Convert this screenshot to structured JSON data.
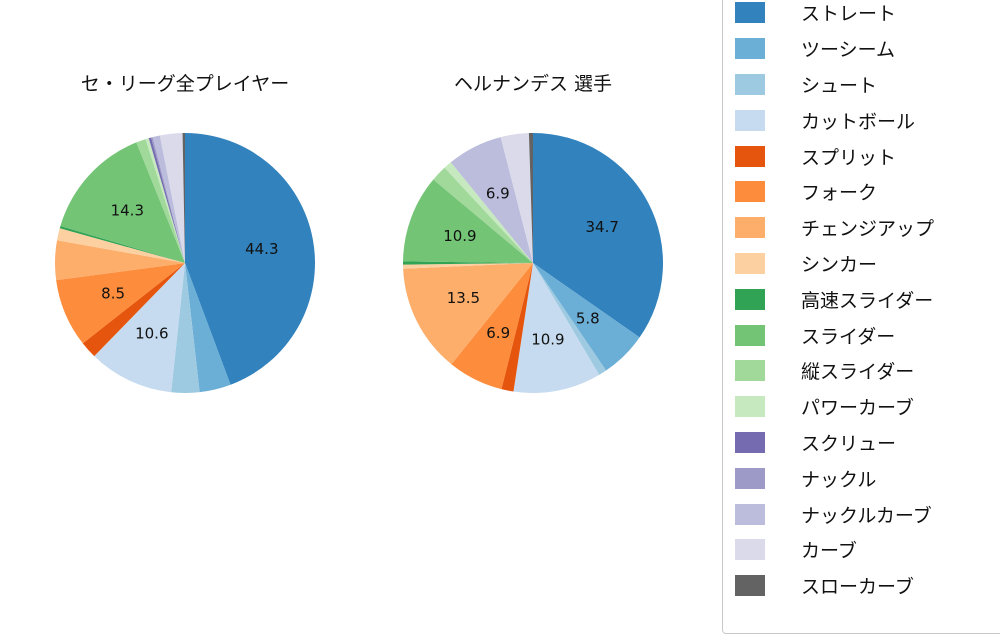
{
  "legend": {
    "items": [
      {
        "label": "ストレート",
        "color": "#3182bd"
      },
      {
        "label": "ツーシーム",
        "color": "#6baed6"
      },
      {
        "label": "シュート",
        "color": "#9ecae1"
      },
      {
        "label": "カットボール",
        "color": "#c6dbef"
      },
      {
        "label": "スプリット",
        "color": "#e6550d"
      },
      {
        "label": "フォーク",
        "color": "#fd8d3c"
      },
      {
        "label": "チェンジアップ",
        "color": "#fdae6b"
      },
      {
        "label": "シンカー",
        "color": "#fdd0a2"
      },
      {
        "label": "高速スライダー",
        "color": "#31a354"
      },
      {
        "label": "スライダー",
        "color": "#74c476"
      },
      {
        "label": "縦スライダー",
        "color": "#a1d99b"
      },
      {
        "label": "パワーカーブ",
        "color": "#c7e9c0"
      },
      {
        "label": "スクリュー",
        "color": "#756bb1"
      },
      {
        "label": "ナックル",
        "color": "#9e9ac8"
      },
      {
        "label": "ナックルカーブ",
        "color": "#bcbddc"
      },
      {
        "label": "カーブ",
        "color": "#dadaeb"
      },
      {
        "label": "スローカーブ",
        "color": "#636363"
      }
    ]
  },
  "chart_data": [
    {
      "type": "pie",
      "title": "セ・リーグ全プレイヤー",
      "start_angle_deg": 90,
      "direction": "clockwise",
      "label_min_pct": 5,
      "label_distance": 0.6,
      "categories": [
        "ストレート",
        "ツーシーム",
        "シュート",
        "カットボール",
        "スプリット",
        "フォーク",
        "チェンジアップ",
        "シンカー",
        "高速スライダー",
        "スライダー",
        "縦スライダー",
        "パワーカーブ",
        "スクリュー",
        "ナックル",
        "ナックルカーブ",
        "カーブ",
        "スローカーブ"
      ],
      "values": [
        44.3,
        3.9,
        3.5,
        10.6,
        2.1,
        8.5,
        4.9,
        1.5,
        0.3,
        14.3,
        1.2,
        0.4,
        0.3,
        0.2,
        0.9,
        2.8,
        0.3
      ],
      "shown_labels": [
        "44.3",
        "10.6",
        "8.5",
        "14.3"
      ]
    },
    {
      "type": "pie",
      "title": "ヘルナンデス 選手",
      "start_angle_deg": 90,
      "direction": "clockwise",
      "label_min_pct": 5,
      "label_distance": 0.6,
      "categories": [
        "ストレート",
        "ツーシーム",
        "シュート",
        "カットボール",
        "スプリット",
        "フォーク",
        "チェンジアップ",
        "シンカー",
        "高速スライダー",
        "スライダー",
        "縦スライダー",
        "パワーカーブ",
        "スクリュー",
        "ナックル",
        "ナックルカーブ",
        "カーブ",
        "スローカーブ"
      ],
      "values": [
        34.7,
        5.8,
        1.0,
        10.9,
        1.5,
        6.9,
        13.5,
        0.5,
        0.4,
        10.9,
        2.0,
        1.0,
        0.0,
        0.0,
        6.9,
        3.5,
        0.5
      ],
      "shown_labels": [
        "34.7",
        "5.8",
        "10.9",
        "6.9",
        "13.5",
        "10.9",
        "6.9"
      ]
    }
  ]
}
